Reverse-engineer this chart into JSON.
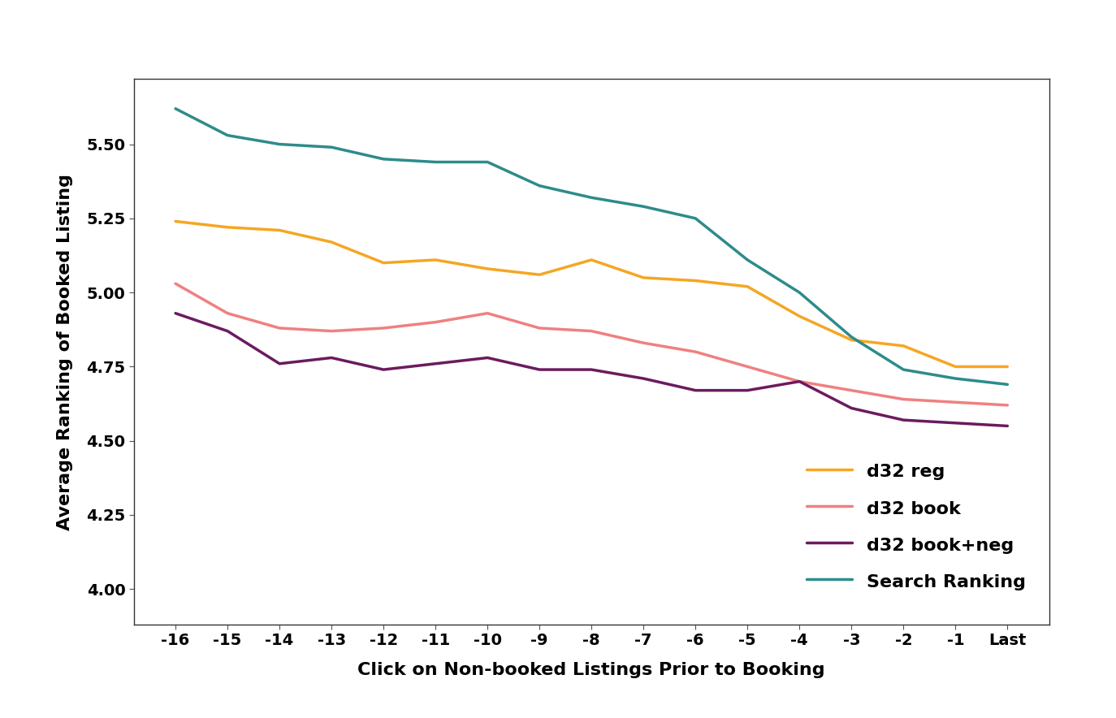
{
  "x_labels": [
    "-16",
    "-15",
    "-14",
    "-13",
    "-12",
    "-11",
    "-10",
    "-9",
    "-8",
    "-7",
    "-6",
    "-5",
    "-4",
    "-3",
    "-2",
    "-1",
    "Last"
  ],
  "x_numeric": [
    0,
    1,
    2,
    3,
    4,
    5,
    6,
    7,
    8,
    9,
    10,
    11,
    12,
    13,
    14,
    15,
    16
  ],
  "series": {
    "d32 reg": {
      "color": "#F5A623",
      "values": [
        5.24,
        5.22,
        5.21,
        5.17,
        5.1,
        5.11,
        5.08,
        5.06,
        5.11,
        5.05,
        5.04,
        5.02,
        4.92,
        4.84,
        4.82,
        4.75,
        4.75
      ]
    },
    "d32 book": {
      "color": "#F08080",
      "values": [
        5.03,
        4.93,
        4.88,
        4.87,
        4.88,
        4.9,
        4.93,
        4.88,
        4.87,
        4.83,
        4.8,
        4.75,
        4.7,
        4.67,
        4.64,
        4.63,
        4.62
      ]
    },
    "d32 book+neg": {
      "color": "#6B1B5E",
      "values": [
        4.93,
        4.87,
        4.76,
        4.78,
        4.74,
        4.76,
        4.78,
        4.74,
        4.74,
        4.71,
        4.67,
        4.67,
        4.7,
        4.61,
        4.57,
        4.56,
        4.55
      ]
    },
    "Search Ranking": {
      "color": "#2E8B8B",
      "values": [
        5.62,
        5.53,
        5.5,
        5.49,
        5.45,
        5.44,
        5.44,
        5.36,
        5.32,
        5.29,
        5.25,
        5.11,
        5.0,
        4.85,
        4.74,
        4.71,
        4.69
      ]
    }
  },
  "xlabel": "Click on Non-booked Listings Prior to Booking",
  "ylabel": "Average Ranking of Booked Listing",
  "ylim": [
    3.88,
    5.72
  ],
  "yticks": [
    4.0,
    4.25,
    4.5,
    4.75,
    5.0,
    5.25,
    5.5
  ],
  "background_color": "#FFFFFF",
  "linewidth": 2.5,
  "label_fontsize": 16,
  "tick_fontsize": 14,
  "legend_fontsize": 16
}
